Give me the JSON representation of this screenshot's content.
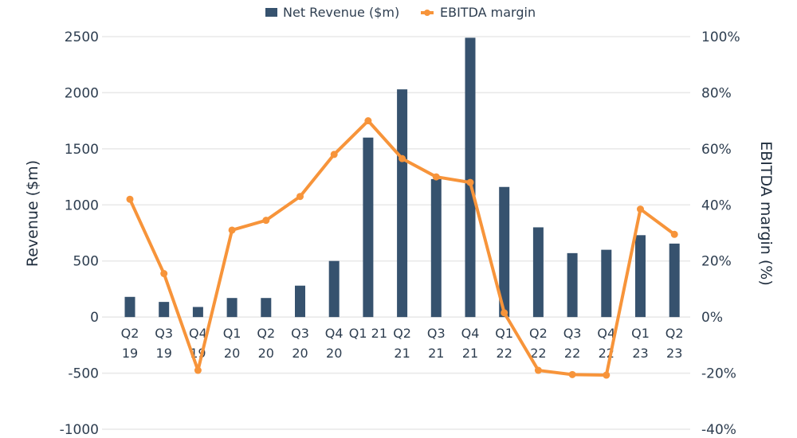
{
  "chart_data": {
    "type": "bar+line",
    "title": "",
    "categories": [
      [
        "Q2",
        "19"
      ],
      [
        "Q3",
        "19"
      ],
      [
        "Q4",
        "19"
      ],
      [
        "Q1",
        "20"
      ],
      [
        "Q2",
        "20"
      ],
      [
        "Q3",
        "20"
      ],
      [
        "Q4",
        "20"
      ],
      [
        "Q1 21",
        ""
      ],
      [
        "Q2",
        "21"
      ],
      [
        "Q3",
        "21"
      ],
      [
        "Q4",
        "21"
      ],
      [
        "Q1",
        "22"
      ],
      [
        "Q2",
        "22"
      ],
      [
        "Q3",
        "22"
      ],
      [
        "Q4",
        "22"
      ],
      [
        "Q1",
        "23"
      ],
      [
        "Q2",
        "23"
      ]
    ],
    "series": [
      {
        "name": "Net Revenue ($m)",
        "type": "bar",
        "axis": "left",
        "color": "#36526e",
        "values": [
          180,
          135,
          90,
          170,
          170,
          280,
          500,
          1600,
          2030,
          1230,
          2490,
          1160,
          800,
          570,
          600,
          730,
          655
        ]
      },
      {
        "name": "EBITDA margin",
        "type": "line",
        "axis": "right",
        "color": "#f7943a",
        "values": [
          42,
          15.5,
          -19,
          31,
          34.5,
          43,
          58,
          70,
          56.5,
          50,
          48,
          1.5,
          -19,
          -20.5,
          -20.7,
          38.5,
          29.5
        ]
      }
    ],
    "ylabel": "Revenue ($m)",
    "ylabel_right": "EBITDA margin (%)",
    "ylim": [
      -1000,
      2500
    ],
    "ylim_right": [
      -40,
      100
    ],
    "yticks": [
      "2500",
      "2000",
      "1500",
      "1000",
      "500",
      "0",
      "-500",
      "-1000"
    ],
    "yticks_values": [
      2500,
      2000,
      1500,
      1000,
      500,
      0,
      -500,
      -1000
    ],
    "yticks_right": [
      "100%",
      "80%",
      "60%",
      "40%",
      "20%",
      "0%",
      "-20%",
      "-40%"
    ],
    "yticks_right_values": [
      100,
      80,
      60,
      40,
      20,
      0,
      -20,
      -40
    ],
    "grid": true,
    "legend_position": "top-center",
    "legend": [
      {
        "label": "Net Revenue ($m)",
        "marker": "square",
        "color": "#36526e"
      },
      {
        "label": "EBITDA margin",
        "marker": "line-dot",
        "color": "#f7943a"
      }
    ]
  }
}
